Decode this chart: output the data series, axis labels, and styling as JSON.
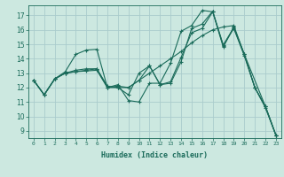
{
  "xlabel": "Humidex (Indice chaleur)",
  "background_color": "#cce8e0",
  "grid_color": "#aacccc",
  "line_color": "#1a6b5a",
  "xlim": [
    -0.5,
    23.5
  ],
  "ylim": [
    8.5,
    17.7
  ],
  "yticks": [
    9,
    10,
    11,
    12,
    13,
    14,
    15,
    16,
    17
  ],
  "xticks": [
    0,
    1,
    2,
    3,
    4,
    5,
    6,
    7,
    8,
    9,
    10,
    11,
    12,
    13,
    14,
    15,
    16,
    17,
    18,
    19,
    20,
    21,
    22,
    23
  ],
  "lines": [
    {
      "x": [
        0,
        1,
        2,
        3,
        4,
        5,
        6,
        7,
        8,
        9,
        10,
        11,
        12,
        13,
        14,
        15,
        16,
        17,
        18,
        19,
        20,
        21,
        22,
        23
      ],
      "y": [
        12.5,
        11.5,
        12.6,
        13.1,
        14.3,
        14.6,
        14.65,
        12.0,
        12.2,
        11.1,
        11.0,
        12.3,
        12.3,
        13.7,
        15.9,
        16.3,
        17.35,
        17.25,
        14.95,
        16.15,
        14.3,
        12.0,
        10.7,
        8.7
      ]
    },
    {
      "x": [
        0,
        1,
        2,
        3,
        4,
        5,
        6,
        7,
        8,
        9,
        10,
        11,
        12,
        13,
        14,
        15,
        16,
        17,
        18,
        19,
        20,
        21,
        22,
        23
      ],
      "y": [
        12.5,
        11.5,
        12.6,
        13.0,
        13.1,
        13.2,
        13.3,
        12.0,
        12.0,
        12.0,
        12.5,
        13.0,
        13.5,
        14.0,
        14.5,
        15.1,
        15.6,
        16.0,
        16.2,
        16.3,
        14.3,
        12.0,
        10.7,
        8.7
      ]
    },
    {
      "x": [
        0,
        1,
        2,
        3,
        4,
        5,
        6,
        7,
        8,
        9,
        10,
        11,
        12,
        13,
        14,
        15,
        16,
        17,
        18,
        19,
        20,
        21,
        22,
        23
      ],
      "y": [
        12.5,
        11.5,
        12.6,
        13.0,
        13.2,
        13.3,
        13.3,
        12.1,
        12.0,
        11.5,
        13.0,
        13.5,
        12.2,
        12.3,
        13.8,
        16.1,
        16.4,
        17.3,
        14.9,
        16.1,
        14.2,
        12.0,
        10.6,
        8.7
      ]
    },
    {
      "x": [
        0,
        1,
        2,
        3,
        4,
        5,
        6,
        7,
        8,
        9,
        10,
        11,
        12,
        13,
        14,
        15,
        16,
        17,
        18,
        19,
        20,
        22,
        23
      ],
      "y": [
        12.5,
        11.5,
        12.6,
        13.0,
        13.1,
        13.15,
        13.2,
        12.0,
        12.1,
        12.0,
        12.5,
        13.5,
        12.2,
        12.4,
        14.1,
        15.8,
        16.1,
        17.25,
        14.8,
        16.2,
        14.3,
        10.7,
        8.7
      ]
    }
  ]
}
